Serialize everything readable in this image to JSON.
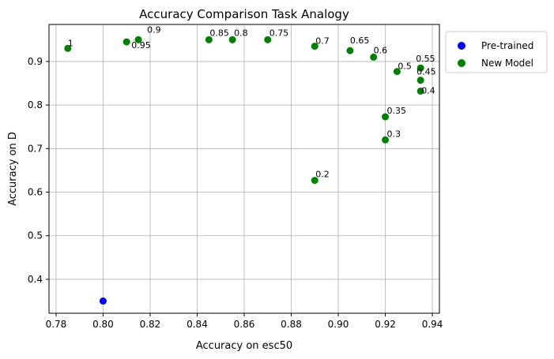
{
  "chart_data": {
    "type": "scatter",
    "title": "Accuracy Comparison Task Analogy",
    "xlabel": "Accuracy on esc50",
    "ylabel": "Accuracy on D",
    "xlim": [
      0.777,
      0.943
    ],
    "ylim": [
      0.322,
      0.985
    ],
    "xticks": [
      "0.78",
      "0.80",
      "0.82",
      "0.84",
      "0.86",
      "0.88",
      "0.90",
      "0.92",
      "0.94"
    ],
    "xtick_values": [
      0.78,
      0.8,
      0.82,
      0.84,
      0.86,
      0.88,
      0.9,
      0.92,
      0.94
    ],
    "yticks": [
      "0.4",
      "0.5",
      "0.6",
      "0.7",
      "0.8",
      "0.9"
    ],
    "ytick_values": [
      0.4,
      0.5,
      0.6,
      0.7,
      0.8,
      0.9
    ],
    "grid": true,
    "legend_position": "outside-top-right",
    "series": [
      {
        "name": "Pre-trained",
        "color": "#0000ff",
        "points": [
          {
            "x": 0.8,
            "y": 0.35
          }
        ]
      },
      {
        "name": "New Model",
        "color": "#008000",
        "points": [
          {
            "x": 0.785,
            "y": 0.93,
            "label": "1"
          },
          {
            "x": 0.81,
            "y": 0.945,
            "label": "0.95"
          },
          {
            "x": 0.815,
            "y": 0.95,
            "label": "0.9"
          },
          {
            "x": 0.845,
            "y": 0.95,
            "label": "0.85"
          },
          {
            "x": 0.855,
            "y": 0.95,
            "label": "0.8"
          },
          {
            "x": 0.87,
            "y": 0.95,
            "label": "0.75"
          },
          {
            "x": 0.89,
            "y": 0.935,
            "label": "0.7"
          },
          {
            "x": 0.905,
            "y": 0.925,
            "label": "0.65"
          },
          {
            "x": 0.915,
            "y": 0.91,
            "label": "0.6"
          },
          {
            "x": 0.935,
            "y": 0.885,
            "label": "0.55"
          },
          {
            "x": 0.925,
            "y": 0.877,
            "label": "0.5"
          },
          {
            "x": 0.935,
            "y": 0.857,
            "label": "0.45"
          },
          {
            "x": 0.935,
            "y": 0.832,
            "label": "0.4"
          },
          {
            "x": 0.92,
            "y": 0.773,
            "label": "0.35"
          },
          {
            "x": 0.92,
            "y": 0.72,
            "label": "0.3"
          },
          {
            "x": 0.89,
            "y": 0.627,
            "label": "0.2"
          }
        ]
      }
    ]
  }
}
